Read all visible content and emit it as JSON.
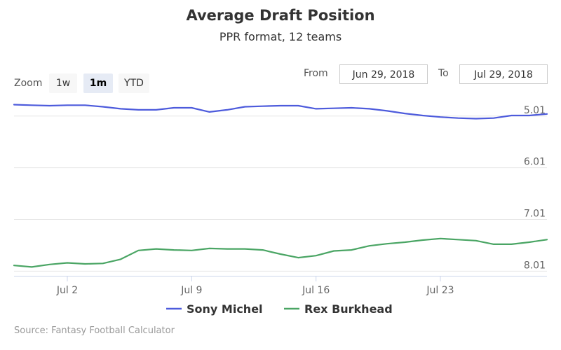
{
  "chart_data": {
    "type": "line",
    "title": "Average Draft Position",
    "subtitle": "PPR format, 12 teams",
    "xlabel": "",
    "ylabel": "",
    "y_reversed": true,
    "ylim": [
      4.81,
      8.1
    ],
    "yticks": [
      5.01,
      6.01,
      7.01,
      8.01
    ],
    "ytick_labels": [
      "5.01",
      "6.01",
      "7.01",
      "8.01"
    ],
    "x_range": [
      "2018-06-29",
      "2018-07-29"
    ],
    "xticks": [
      "2018-07-02",
      "2018-07-09",
      "2018-07-16",
      "2018-07-23"
    ],
    "xtick_labels": [
      "Jul 2",
      "Jul 9",
      "Jul 16",
      "Jul 23"
    ],
    "grid": true,
    "legend_position": "bottom",
    "source": "Source: Fantasy Football Calculator",
    "series": [
      {
        "name": "Sony Michel",
        "color": "#4d5bdc",
        "points": [
          [
            "2018-06-29",
            4.79
          ],
          [
            "2018-06-30",
            4.8
          ],
          [
            "2018-07-01",
            4.81
          ],
          [
            "2018-07-02",
            4.8
          ],
          [
            "2018-07-03",
            4.8
          ],
          [
            "2018-07-04",
            4.83
          ],
          [
            "2018-07-05",
            4.87
          ],
          [
            "2018-07-06",
            4.89
          ],
          [
            "2018-07-07",
            4.89
          ],
          [
            "2018-07-08",
            4.85
          ],
          [
            "2018-07-09",
            4.85
          ],
          [
            "2018-07-10",
            4.93
          ],
          [
            "2018-07-11",
            4.89
          ],
          [
            "2018-07-12",
            4.83
          ],
          [
            "2018-07-13",
            4.82
          ],
          [
            "2018-07-14",
            4.81
          ],
          [
            "2018-07-15",
            4.81
          ],
          [
            "2018-07-16",
            4.87
          ],
          [
            "2018-07-17",
            4.86
          ],
          [
            "2018-07-18",
            4.85
          ],
          [
            "2018-07-19",
            4.87
          ],
          [
            "2018-07-20",
            4.91
          ],
          [
            "2018-07-21",
            4.96
          ],
          [
            "2018-07-22",
            5.0
          ],
          [
            "2018-07-23",
            5.03
          ],
          [
            "2018-07-24",
            5.05
          ],
          [
            "2018-07-25",
            5.06
          ],
          [
            "2018-07-26",
            5.05
          ],
          [
            "2018-07-27",
            5.0
          ],
          [
            "2018-07-28",
            5.0
          ],
          [
            "2018-07-29",
            4.97
          ]
        ]
      },
      {
        "name": "Rex Burkhead",
        "color": "#4aa564",
        "points": [
          [
            "2018-06-29",
            7.9
          ],
          [
            "2018-06-30",
            7.93
          ],
          [
            "2018-07-01",
            7.88
          ],
          [
            "2018-07-02",
            7.85
          ],
          [
            "2018-07-03",
            7.87
          ],
          [
            "2018-07-04",
            7.86
          ],
          [
            "2018-07-05",
            7.78
          ],
          [
            "2018-07-06",
            7.61
          ],
          [
            "2018-07-07",
            7.58
          ],
          [
            "2018-07-08",
            7.6
          ],
          [
            "2018-07-09",
            7.61
          ],
          [
            "2018-07-10",
            7.57
          ],
          [
            "2018-07-11",
            7.58
          ],
          [
            "2018-07-12",
            7.58
          ],
          [
            "2018-07-13",
            7.6
          ],
          [
            "2018-07-14",
            7.68
          ],
          [
            "2018-07-15",
            7.75
          ],
          [
            "2018-07-16",
            7.71
          ],
          [
            "2018-07-17",
            7.62
          ],
          [
            "2018-07-18",
            7.6
          ],
          [
            "2018-07-19",
            7.52
          ],
          [
            "2018-07-20",
            7.48
          ],
          [
            "2018-07-21",
            7.45
          ],
          [
            "2018-07-22",
            7.41
          ],
          [
            "2018-07-23",
            7.38
          ],
          [
            "2018-07-24",
            7.4
          ],
          [
            "2018-07-25",
            7.42
          ],
          [
            "2018-07-26",
            7.49
          ],
          [
            "2018-07-27",
            7.49
          ],
          [
            "2018-07-28",
            7.45
          ],
          [
            "2018-07-29",
            7.4
          ]
        ]
      }
    ]
  },
  "rangeSelector": {
    "zoom_label": "Zoom",
    "buttons": [
      "1w",
      "1m",
      "YTD"
    ],
    "selected": "1m",
    "from_label": "From",
    "from_value": "Jun 29, 2018",
    "to_label": "To",
    "to_value": "Jul 29, 2018"
  }
}
